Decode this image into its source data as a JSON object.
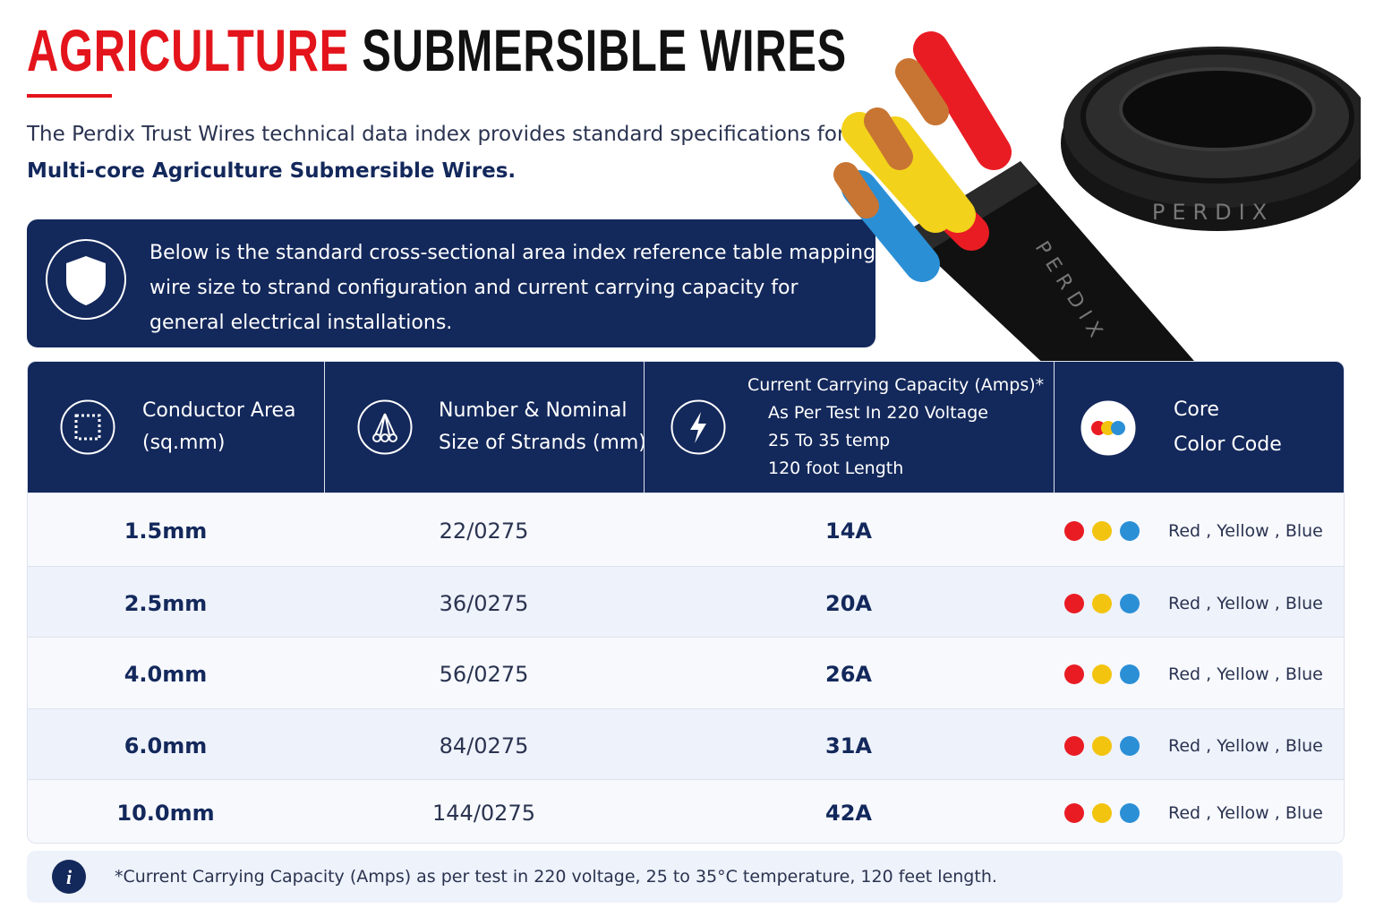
{
  "title": {
    "highlight": "AGRICULTURE",
    "rest": "SUBMERSIBLE WIRES"
  },
  "intro": {
    "text": "The Perdix Trust Wires technical data index provides standard specifications for",
    "bold": "Multi-core Agriculture Submersible Wires."
  },
  "notice": {
    "lines": [
      "Below is the standard cross-sectional area index reference table mapping",
      "wire size to strand configuration and current carrying capacity for",
      "general electrical installations."
    ]
  },
  "brand": "PERDIX",
  "table": {
    "headers": [
      [
        "Conductor Area",
        "(sq.mm)"
      ],
      [
        "Number & Nominal",
        "Size of Strands (mm)"
      ],
      [
        "Current Carrying Capacity (Amps)*",
        "As Per Test In 220 Voltage",
        "25 To 35 temp",
        "120 foot Length"
      ],
      [
        "Core",
        "Color Code"
      ]
    ],
    "rows": [
      [
        "1.5mm",
        "22/0275",
        "14A",
        "Red , Yellow , Blue"
      ],
      [
        "2.5mm",
        "36/0275",
        "20A",
        "Red , Yellow , Blue"
      ],
      [
        "4.0mm",
        "56/0275",
        "26A",
        "Red , Yellow , Blue"
      ],
      [
        "6.0mm",
        "84/0275",
        "31A",
        "Red , Yellow , Blue"
      ],
      [
        "10.0mm",
        "144/0275",
        "42A",
        "Red , Yellow , Blue"
      ]
    ]
  },
  "footnote": "*Current Carrying Capacity (Amps) as per test in 220 voltage, 25 to 35°C temperature, 120 feet length."
}
